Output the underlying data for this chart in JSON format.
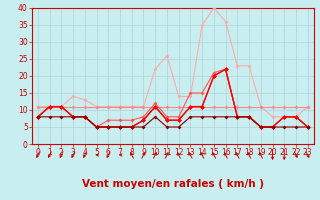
{
  "background_color": "#c8eef0",
  "grid_color": "#b0d0d8",
  "xlabel": "Vent moyen/en rafales ( km/h )",
  "xlim": [
    -0.5,
    23.5
  ],
  "ylim": [
    0,
    40
  ],
  "yticks": [
    0,
    5,
    10,
    15,
    20,
    25,
    30,
    35,
    40
  ],
  "xticks": [
    0,
    1,
    2,
    3,
    4,
    5,
    6,
    7,
    8,
    9,
    10,
    11,
    12,
    13,
    14,
    15,
    16,
    17,
    18,
    19,
    20,
    21,
    22,
    23
  ],
  "series": [
    {
      "color": "#ffaaaa",
      "linewidth": 0.8,
      "marker": "D",
      "markersize": 2.0,
      "values": [
        11,
        11,
        11,
        14,
        13,
        11,
        11,
        11,
        11,
        11,
        22,
        26,
        14,
        14,
        35,
        40,
        36,
        23,
        23,
        11,
        8,
        8,
        8,
        11
      ]
    },
    {
      "color": "#ff8888",
      "linewidth": 0.8,
      "marker": "D",
      "markersize": 2.0,
      "values": [
        11,
        11,
        11,
        11,
        11,
        11,
        11,
        11,
        11,
        11,
        11,
        11,
        11,
        11,
        11,
        11,
        11,
        11,
        11,
        11,
        11,
        11,
        11,
        11
      ]
    },
    {
      "color": "#ff5555",
      "linewidth": 0.8,
      "marker": "D",
      "markersize": 2.0,
      "values": [
        8,
        11,
        11,
        8,
        8,
        5,
        7,
        7,
        7,
        8,
        12,
        8,
        8,
        15,
        15,
        21,
        22,
        8,
        8,
        5,
        5,
        8,
        8,
        5
      ]
    },
    {
      "color": "#dd2222",
      "linewidth": 0.8,
      "marker": "D",
      "markersize": 2.0,
      "values": [
        8,
        11,
        11,
        8,
        8,
        5,
        5,
        5,
        5,
        7,
        11,
        7,
        7,
        11,
        11,
        20,
        22,
        8,
        8,
        5,
        5,
        8,
        8,
        5
      ]
    },
    {
      "color": "#ff0000",
      "linewidth": 1.0,
      "marker": "D",
      "markersize": 2.5,
      "values": [
        8,
        11,
        11,
        8,
        8,
        5,
        5,
        5,
        5,
        7,
        11,
        7,
        7,
        11,
        11,
        20,
        22,
        8,
        8,
        5,
        5,
        8,
        8,
        5
      ]
    },
    {
      "color": "#880000",
      "linewidth": 0.8,
      "marker": "D",
      "markersize": 2.0,
      "values": [
        8,
        8,
        8,
        8,
        8,
        5,
        5,
        5,
        5,
        5,
        8,
        5,
        5,
        8,
        8,
        8,
        8,
        8,
        8,
        5,
        5,
        5,
        5,
        5
      ]
    }
  ],
  "wind_angles_deg": [
    225,
    225,
    225,
    225,
    225,
    270,
    225,
    270,
    315,
    45,
    45,
    45,
    315,
    315,
    315,
    315,
    315,
    315,
    315,
    315,
    180,
    180,
    135,
    135
  ],
  "xlabel_color": "#cc0000",
  "tick_color": "#cc0000",
  "tick_fontsize": 5.5,
  "xlabel_fontsize": 7.5,
  "arrow_color": "#cc0000"
}
